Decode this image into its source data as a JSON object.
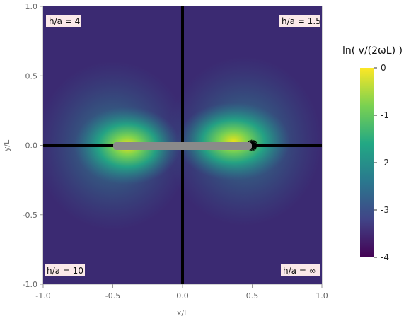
{
  "chart_data": {
    "type": "heatmap",
    "xlabel": "x/L",
    "ylabel": "y/L",
    "xlim": [
      -1.0,
      1.0
    ],
    "ylim": [
      -1.0,
      1.0
    ],
    "x_ticks": [
      "-1.0",
      "-0.5",
      "0.0",
      "0.5",
      "1.0"
    ],
    "y_ticks": [
      "1.0",
      "0.5",
      "0.0",
      "-0.5",
      "-1.0"
    ],
    "quadrant_labels": {
      "top_left": "h/a = 4",
      "top_right": "h/a = 1.5",
      "bottom_left": "h/a = 10",
      "bottom_right": "h/a = ∞"
    },
    "rod": {
      "x_start": -0.5,
      "x_end": 0.5,
      "y": 0.0
    },
    "colorbar": {
      "title": "ln( v/(2ωL) )",
      "ticks": [
        "0",
        "-1",
        "-2",
        "-3",
        "-4"
      ],
      "range": [
        -4,
        0
      ],
      "colors": [
        "#fde725",
        "#7ad151",
        "#22a884",
        "#2a788e",
        "#414487",
        "#440154"
      ]
    },
    "field": "streamlines of dipole-like flow around a rod along the x-axis, magnitude highest near rod ends"
  }
}
